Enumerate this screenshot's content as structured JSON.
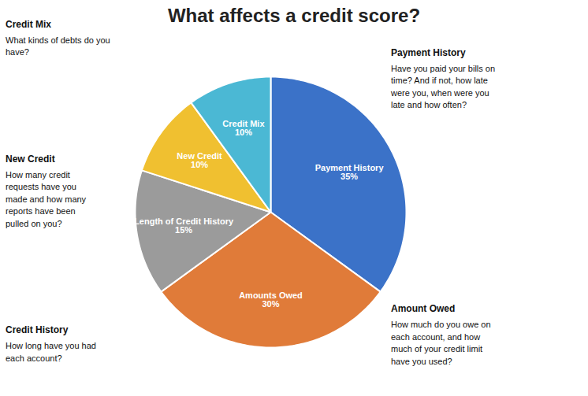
{
  "chart_data": {
    "type": "pie",
    "title": "What affects a credit score?",
    "categories": [
      "Payment History\n35%",
      "Amounts Owed\n30%",
      "Length of Credit History\n15%",
      "New Credit\n10%",
      "Credit Mix\n10%"
    ],
    "values": [
      35,
      30,
      15,
      10,
      10
    ],
    "colors": [
      "#3b72c8",
      "#e07b39",
      "#9b9b9b",
      "#f0c030",
      "#4bb8d4"
    ],
    "annotations": [
      {
        "title": "Credit Mix",
        "text": "What kinds of debts do you\nhave?"
      },
      {
        "title": "New Credit",
        "text": "How many credit\nrequests have you\nmade and how many\nreports have been\npulled on you?"
      },
      {
        "title": "Credit History",
        "text": "How long have you had\neach account?"
      },
      {
        "title": "Payment History",
        "text": "Have you paid your bills on\ntime? And if not, how late\nwere you, when were you\nlate and how often?"
      },
      {
        "title": "Amount Owed",
        "text": "How much do you owe on\neach account, and how\nmuch of your credit limit\nhave you used?"
      }
    ]
  }
}
